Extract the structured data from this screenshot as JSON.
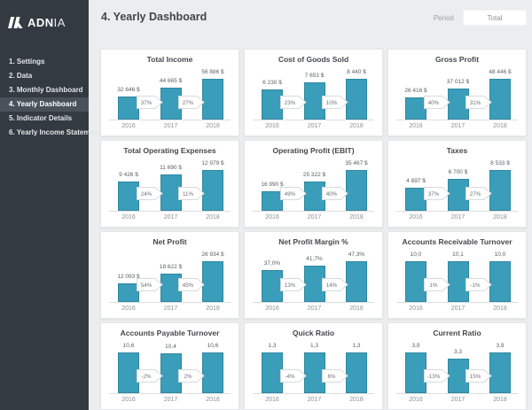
{
  "sidebar": {
    "logo_bold": "ADN",
    "logo_light": "IA",
    "items": [
      {
        "label": "1. Settings",
        "active": false
      },
      {
        "label": "2. Data",
        "active": false
      },
      {
        "label": "3. Monthly Dashboard",
        "active": false
      },
      {
        "label": "4. Yearly Dashboard",
        "active": true
      },
      {
        "label": "5. Indicator Details",
        "active": false
      },
      {
        "label": "6. Yearly Income Statement",
        "active": false
      }
    ]
  },
  "header": {
    "title": "4. Yearly Dashboard",
    "period_label": "Period",
    "period_value": "Total"
  },
  "colors": {
    "bar_fill": "#3a9eba",
    "bar_border": "#2f87a0",
    "sidebar_bg": "#333a41",
    "sidebar_active_bg": "#49525b",
    "content_bg": "#ecedee",
    "card_bg": "#ffffff",
    "arrow_border": "#d7dadc",
    "title_text": "#43484d"
  },
  "chart_data": [
    {
      "type": "bar",
      "title": "Total Income",
      "categories": [
        "2016",
        "2017",
        "2018"
      ],
      "values": [
        32646,
        44665,
        56886
      ],
      "value_labels": [
        "32 646 $",
        "44 665 $",
        "56 886 $"
      ],
      "change_labels": [
        "37%",
        "27%"
      ],
      "ylim": [
        0,
        56886
      ]
    },
    {
      "type": "bar",
      "title": "Cost of Goods Sold",
      "categories": [
        "2016",
        "2017",
        "2018"
      ],
      "values": [
        6230,
        7653,
        8440
      ],
      "value_labels": [
        "6 230 $",
        "7 653 $",
        "8 440 $"
      ],
      "change_labels": [
        "23%",
        "10%"
      ],
      "ylim": [
        0,
        8440
      ]
    },
    {
      "type": "bar",
      "title": "Gross Profit",
      "categories": [
        "2016",
        "2017",
        "2018"
      ],
      "values": [
        26416,
        37012,
        48446
      ],
      "value_labels": [
        "26 416 $",
        "37 012 $",
        "48 446 $"
      ],
      "change_labels": [
        "40%",
        "31%"
      ],
      "ylim": [
        0,
        48446
      ]
    },
    {
      "type": "bar",
      "title": "Total Operating Expenses",
      "categories": [
        "2016",
        "2017",
        "2018"
      ],
      "values": [
        9426,
        11690,
        12979
      ],
      "value_labels": [
        "9 426 $",
        "11 690 $",
        "12 979 $"
      ],
      "change_labels": [
        "24%",
        "11%"
      ],
      "ylim": [
        0,
        12979
      ]
    },
    {
      "type": "bar",
      "title": "Operating Profit (EBIT)",
      "categories": [
        "2016",
        "2017",
        "2018"
      ],
      "values": [
        16990,
        25322,
        35467
      ],
      "value_labels": [
        "16 990 $",
        "25 322 $",
        "35 467 $"
      ],
      "change_labels": [
        "49%",
        "40%"
      ],
      "ylim": [
        0,
        35467
      ]
    },
    {
      "type": "bar",
      "title": "Taxes",
      "categories": [
        "2016",
        "2017",
        "2018"
      ],
      "values": [
        4897,
        6700,
        8533
      ],
      "value_labels": [
        "4 897 $",
        "6 700 $",
        "8 533 $"
      ],
      "change_labels": [
        "37%",
        "27%"
      ],
      "ylim": [
        0,
        8533
      ]
    },
    {
      "type": "bar",
      "title": "Net Profit",
      "categories": [
        "2016",
        "2017",
        "2018"
      ],
      "values": [
        12093,
        18622,
        26934
      ],
      "value_labels": [
        "12 093 $",
        "18 622 $",
        "26 934 $"
      ],
      "change_labels": [
        "54%",
        "45%"
      ],
      "ylim": [
        0,
        26934
      ]
    },
    {
      "type": "bar",
      "title": "Net Profit Margin %",
      "categories": [
        "2016",
        "2017",
        "2018"
      ],
      "values": [
        37.0,
        41.7,
        47.3
      ],
      "value_labels": [
        "37,0%",
        "41,7%",
        "47,3%"
      ],
      "change_labels": [
        "13%",
        "14%"
      ],
      "ylim": [
        0,
        47.3
      ]
    },
    {
      "type": "bar",
      "title": "Accounts Receivable Turnover",
      "categories": [
        "2016",
        "2017",
        "2018"
      ],
      "values": [
        10.0,
        10.1,
        10.0
      ],
      "value_labels": [
        "10,0",
        "10,1",
        "10,0"
      ],
      "change_labels": [
        "1%",
        "-1%"
      ],
      "ylim": [
        0,
        10.1
      ]
    },
    {
      "type": "bar",
      "title": "Accounts Payable Turnover",
      "categories": [
        "2016",
        "2017",
        "2018"
      ],
      "values": [
        10.6,
        10.4,
        10.6
      ],
      "value_labels": [
        "10,6",
        "10,4",
        "10,6"
      ],
      "change_labels": [
        "-2%",
        "2%"
      ],
      "ylim": [
        0,
        10.6
      ]
    },
    {
      "type": "bar",
      "title": "Quick Ratio",
      "categories": [
        "2016",
        "2017",
        "2018"
      ],
      "values": [
        1.3,
        1.3,
        1.3
      ],
      "value_labels": [
        "1,3",
        "1,3",
        "1,3"
      ],
      "change_labels": [
        "-4%",
        "6%"
      ],
      "ylim": [
        0,
        1.3
      ]
    },
    {
      "type": "bar",
      "title": "Current Ratio",
      "categories": [
        "2016",
        "2017",
        "2018"
      ],
      "values": [
        3.9,
        3.3,
        3.9
      ],
      "value_labels": [
        "3,9",
        "3,3",
        "3,9"
      ],
      "change_labels": [
        "-13%",
        "15%"
      ],
      "ylim": [
        0,
        3.9
      ]
    }
  ]
}
